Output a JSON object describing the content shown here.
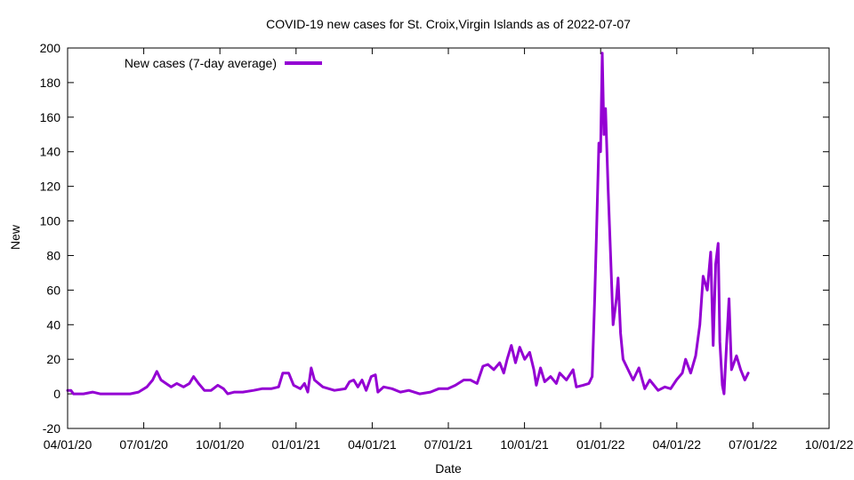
{
  "chart_data": {
    "type": "line",
    "title": "COVID-19 new cases for St. Croix,Virgin Islands as of 2022-07-07",
    "xlabel": "Date",
    "ylabel": "New",
    "x_range": [
      "2020-04-01",
      "2022-10-01"
    ],
    "x_ticks": [
      "04/01/20",
      "07/01/20",
      "10/01/20",
      "01/01/21",
      "04/01/21",
      "07/01/21",
      "10/01/21",
      "01/01/22",
      "04/01/22",
      "07/01/22",
      "10/01/22"
    ],
    "ylim": [
      -20,
      200
    ],
    "y_ticks": [
      -20,
      0,
      20,
      40,
      60,
      80,
      100,
      120,
      140,
      160,
      180,
      200
    ],
    "grid": false,
    "legend_position": "top-left",
    "series": [
      {
        "name": "New cases (7-day average)",
        "color": "#9400d3",
        "points": [
          [
            "2020-04-01",
            2
          ],
          [
            "2020-04-05",
            2
          ],
          [
            "2020-04-08",
            0
          ],
          [
            "2020-04-20",
            0
          ],
          [
            "2020-05-01",
            1
          ],
          [
            "2020-05-10",
            0
          ],
          [
            "2020-06-01",
            0
          ],
          [
            "2020-06-15",
            0
          ],
          [
            "2020-06-25",
            1
          ],
          [
            "2020-07-05",
            4
          ],
          [
            "2020-07-12",
            8
          ],
          [
            "2020-07-17",
            13
          ],
          [
            "2020-07-22",
            8
          ],
          [
            "2020-07-28",
            6
          ],
          [
            "2020-08-03",
            4
          ],
          [
            "2020-08-10",
            6
          ],
          [
            "2020-08-18",
            4
          ],
          [
            "2020-08-25",
            6
          ],
          [
            "2020-08-30",
            10
          ],
          [
            "2020-09-05",
            6
          ],
          [
            "2020-09-12",
            2
          ],
          [
            "2020-09-20",
            2
          ],
          [
            "2020-09-28",
            5
          ],
          [
            "2020-10-05",
            3
          ],
          [
            "2020-10-10",
            0
          ],
          [
            "2020-10-18",
            1
          ],
          [
            "2020-10-28",
            1
          ],
          [
            "2020-11-10",
            2
          ],
          [
            "2020-11-20",
            3
          ],
          [
            "2020-12-01",
            3
          ],
          [
            "2020-12-10",
            4
          ],
          [
            "2020-12-15",
            12
          ],
          [
            "2020-12-22",
            12
          ],
          [
            "2020-12-28",
            5
          ],
          [
            "2021-01-05",
            3
          ],
          [
            "2021-01-10",
            6
          ],
          [
            "2021-01-14",
            1
          ],
          [
            "2021-01-18",
            15
          ],
          [
            "2021-01-22",
            8
          ],
          [
            "2021-02-01",
            4
          ],
          [
            "2021-02-15",
            2
          ],
          [
            "2021-02-28",
            3
          ],
          [
            "2021-03-05",
            7
          ],
          [
            "2021-03-10",
            8
          ],
          [
            "2021-03-15",
            4
          ],
          [
            "2021-03-20",
            8
          ],
          [
            "2021-03-25",
            2
          ],
          [
            "2021-03-31",
            10
          ],
          [
            "2021-04-05",
            11
          ],
          [
            "2021-04-08",
            1
          ],
          [
            "2021-04-15",
            4
          ],
          [
            "2021-04-25",
            3
          ],
          [
            "2021-05-05",
            1
          ],
          [
            "2021-05-15",
            2
          ],
          [
            "2021-05-28",
            0
          ],
          [
            "2021-06-10",
            1
          ],
          [
            "2021-06-20",
            3
          ],
          [
            "2021-07-01",
            3
          ],
          [
            "2021-07-10",
            5
          ],
          [
            "2021-07-20",
            8
          ],
          [
            "2021-07-28",
            8
          ],
          [
            "2021-08-05",
            6
          ],
          [
            "2021-08-12",
            16
          ],
          [
            "2021-08-18",
            17
          ],
          [
            "2021-08-25",
            14
          ],
          [
            "2021-09-01",
            18
          ],
          [
            "2021-09-06",
            12
          ],
          [
            "2021-09-10",
            20
          ],
          [
            "2021-09-15",
            28
          ],
          [
            "2021-09-20",
            18
          ],
          [
            "2021-09-25",
            27
          ],
          [
            "2021-10-01",
            20
          ],
          [
            "2021-10-07",
            24
          ],
          [
            "2021-10-12",
            14
          ],
          [
            "2021-10-15",
            5
          ],
          [
            "2021-10-20",
            15
          ],
          [
            "2021-10-25",
            7
          ],
          [
            "2021-11-01",
            10
          ],
          [
            "2021-11-08",
            6
          ],
          [
            "2021-11-12",
            12
          ],
          [
            "2021-11-20",
            8
          ],
          [
            "2021-11-28",
            14
          ],
          [
            "2021-12-02",
            4
          ],
          [
            "2021-12-10",
            5
          ],
          [
            "2021-12-17",
            6
          ],
          [
            "2021-12-21",
            10
          ],
          [
            "2021-12-24",
            55
          ],
          [
            "2021-12-26",
            90
          ],
          [
            "2021-12-29",
            145
          ],
          [
            "2021-12-31",
            140
          ],
          [
            "2022-01-02",
            197
          ],
          [
            "2022-01-04",
            150
          ],
          [
            "2022-01-06",
            165
          ],
          [
            "2022-01-09",
            120
          ],
          [
            "2022-01-12",
            80
          ],
          [
            "2022-01-15",
            40
          ],
          [
            "2022-01-19",
            55
          ],
          [
            "2022-01-21",
            67
          ],
          [
            "2022-01-24",
            35
          ],
          [
            "2022-01-27",
            20
          ],
          [
            "2022-02-01",
            15
          ],
          [
            "2022-02-08",
            8
          ],
          [
            "2022-02-15",
            15
          ],
          [
            "2022-02-22",
            3
          ],
          [
            "2022-02-28",
            8
          ],
          [
            "2022-03-10",
            2
          ],
          [
            "2022-03-18",
            4
          ],
          [
            "2022-03-25",
            3
          ],
          [
            "2022-04-01",
            8
          ],
          [
            "2022-04-08",
            12
          ],
          [
            "2022-04-12",
            20
          ],
          [
            "2022-04-18",
            12
          ],
          [
            "2022-04-24",
            22
          ],
          [
            "2022-04-29",
            40
          ],
          [
            "2022-05-03",
            68
          ],
          [
            "2022-05-08",
            60
          ],
          [
            "2022-05-12",
            82
          ],
          [
            "2022-05-15",
            28
          ],
          [
            "2022-05-18",
            75
          ],
          [
            "2022-05-21",
            87
          ],
          [
            "2022-05-23",
            30
          ],
          [
            "2022-05-26",
            5
          ],
          [
            "2022-05-28",
            0
          ],
          [
            "2022-05-31",
            28
          ],
          [
            "2022-06-03",
            55
          ],
          [
            "2022-06-06",
            14
          ],
          [
            "2022-06-12",
            22
          ],
          [
            "2022-06-17",
            14
          ],
          [
            "2022-06-22",
            8
          ],
          [
            "2022-06-26",
            12
          ]
        ]
      }
    ]
  }
}
